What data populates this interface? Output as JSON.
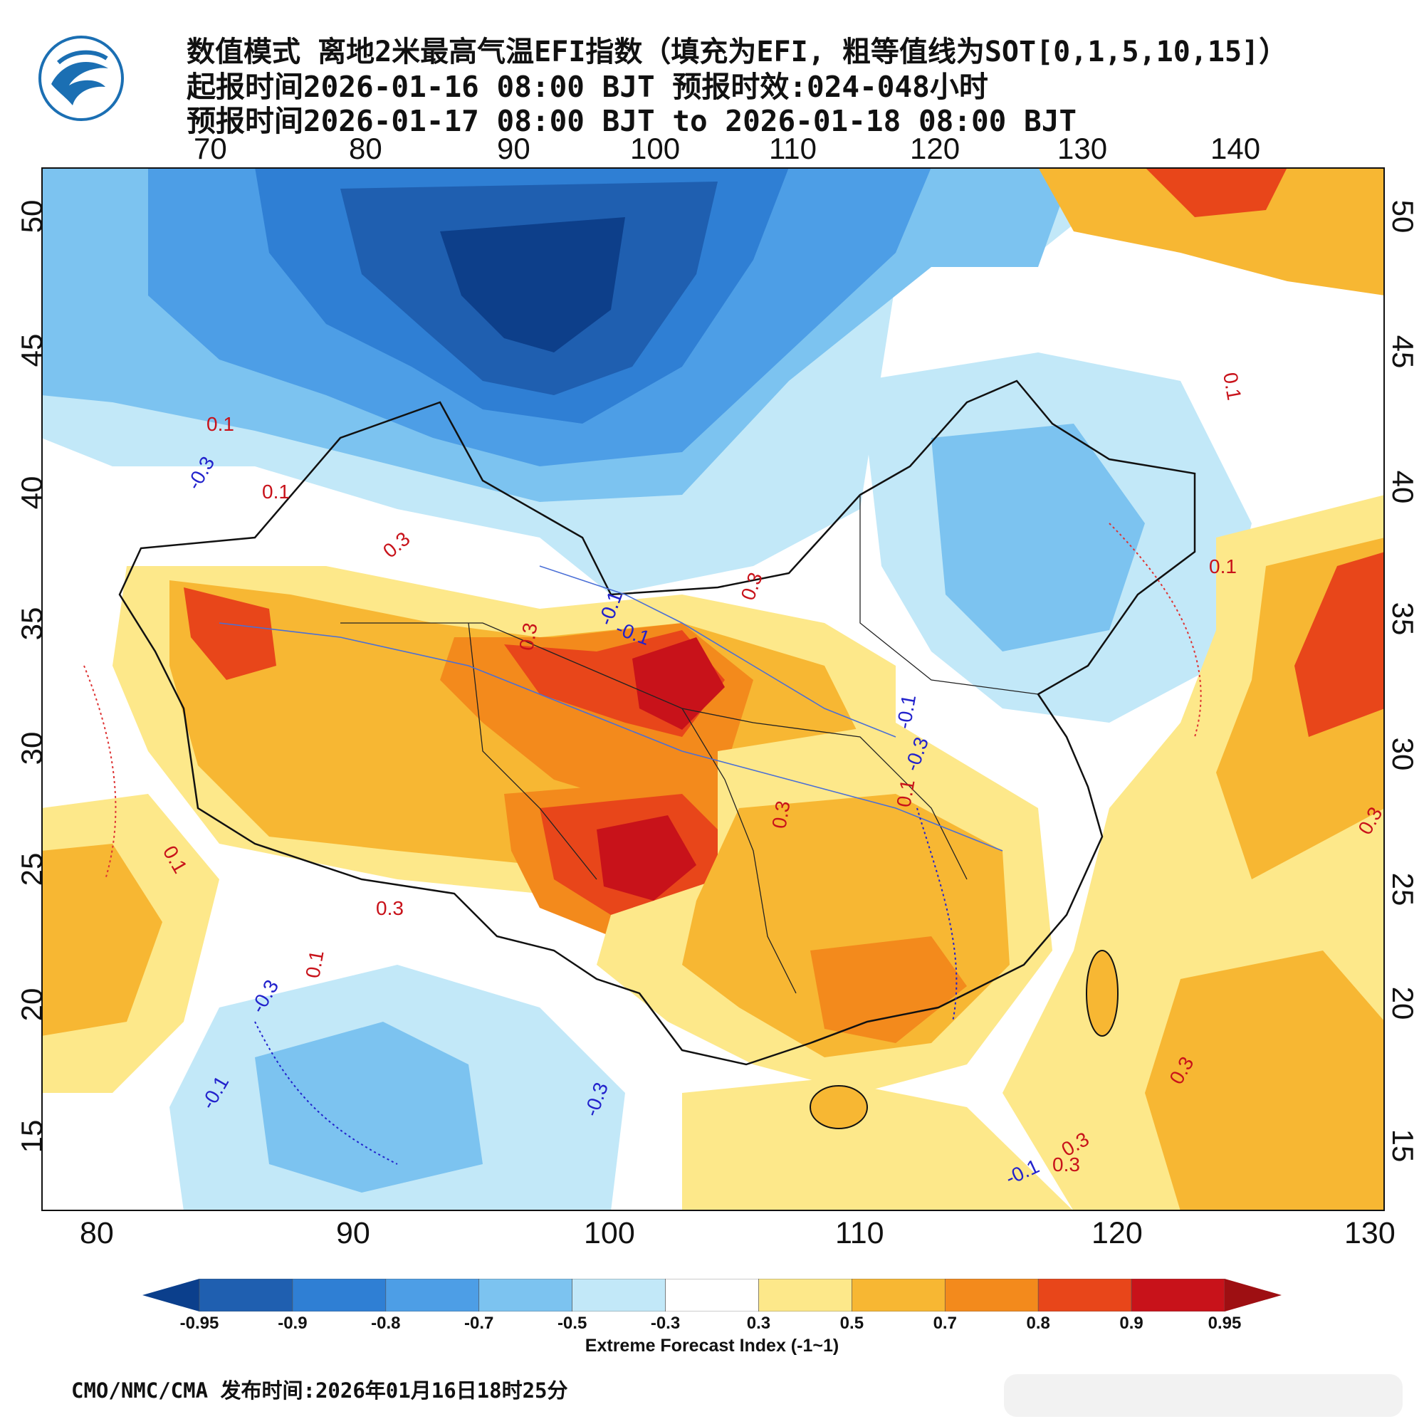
{
  "title": {
    "line1": "数值模式 离地2米最高气温EFI指数（填充为EFI, 粗等值线为SOT[0,1,5,10,15]）",
    "line2": "起报时间2026-01-16 08:00 BJT 预报时效:024-048小时",
    "line3": "预报时间2026-01-17 08:00 BJT to 2026-01-18 08:00 BJT"
  },
  "axes": {
    "top_lon_ticks": [
      "70",
      "80",
      "90",
      "100",
      "110",
      "120",
      "130",
      "140"
    ],
    "bottom_lon_ticks": [
      "80",
      "90",
      "100",
      "110",
      "120",
      "130"
    ],
    "left_lat_ticks": [
      "50",
      "45",
      "40",
      "35",
      "30",
      "25",
      "20",
      "15"
    ],
    "right_lat_ticks": [
      "50",
      "45",
      "40",
      "35",
      "30",
      "25",
      "20",
      "15"
    ]
  },
  "contour_labels": {
    "red": [
      "0.1",
      "0.3",
      "0.1",
      "0.3",
      "0.1",
      "0.3",
      "0.1",
      "0.3",
      "0.1",
      "0.3",
      "0.3",
      "0.1",
      "0.3",
      "0.1",
      "0.3",
      "0.3"
    ],
    "blue": [
      "-0.3",
      "-0.1",
      "-0.1",
      "-0.3",
      "-0.3",
      "-0.1",
      "-0.3",
      "-0.1",
      "-0.1"
    ]
  },
  "colorbar": {
    "title": "Extreme Forecast Index (-1~1)",
    "labels": [
      "-0.95",
      "-0.9",
      "-0.8",
      "-0.7",
      "-0.5",
      "-0.3",
      "0.3",
      "0.5",
      "0.7",
      "0.8",
      "0.9",
      "0.95"
    ],
    "colors": [
      "#1f5fb0",
      "#2f7fd4",
      "#4d9ee6",
      "#7cc3f0",
      "#c2e8f8",
      "#ffffff",
      "#fde88a",
      "#f7b733",
      "#f38a1c",
      "#e8461a",
      "#c8121a"
    ],
    "low_end_color": "#0b3f8c",
    "high_end_color": "#9e0f12"
  },
  "footer": {
    "text": "CMO/NMC/CMA 发布时间:2026年01月16日18时25分"
  },
  "colors": {
    "cold_core": "#0d3f8a",
    "cold": "#2a7fd0",
    "cool": "#8fd0f2",
    "warm": "#f7b733",
    "hot": "#e8461a",
    "extreme_hot": "#b50f14",
    "logo_blue": "#1b6fb3"
  }
}
